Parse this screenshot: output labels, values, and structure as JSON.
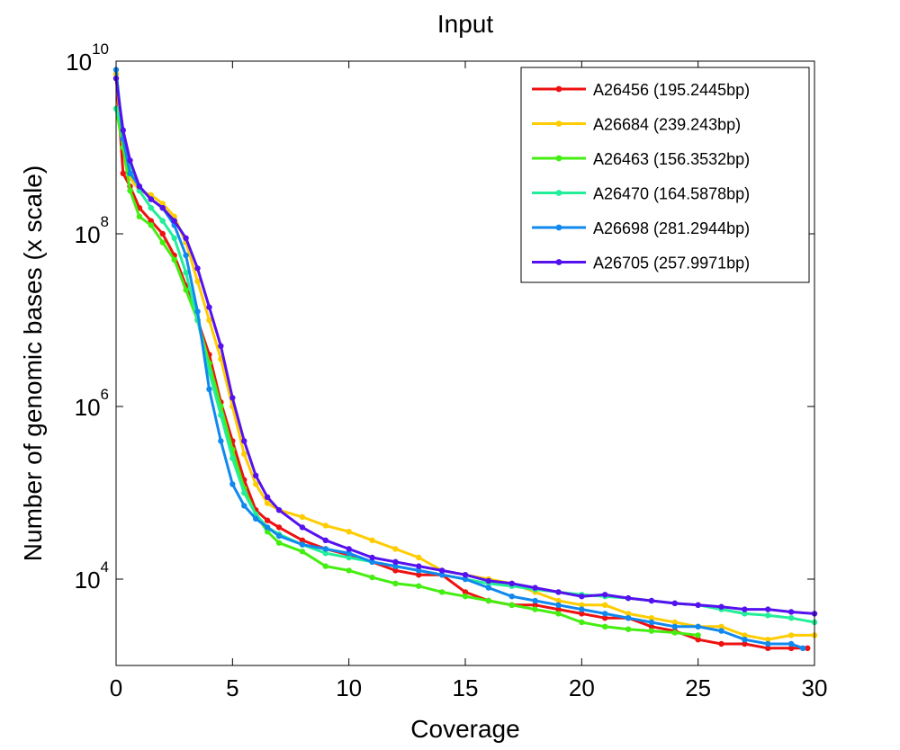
{
  "chart_data": {
    "type": "line",
    "title": "Input",
    "xlabel": "Coverage",
    "ylabel": "Number of genomic bases (x scale)",
    "xlim": [
      0,
      30
    ],
    "ylim_log10": [
      3.0,
      10.0
    ],
    "y_scale": "log",
    "x_ticks": [
      0,
      5,
      10,
      15,
      20,
      25,
      30
    ],
    "y_ticks": [
      {
        "base": "10",
        "exp": "4",
        "value_log10": 4
      },
      {
        "base": "10",
        "exp": "6",
        "value_log10": 6
      },
      {
        "base": "10",
        "exp": "8",
        "value_log10": 8
      },
      {
        "base": "10",
        "exp": "10",
        "value_log10": 10
      }
    ],
    "grid": false,
    "legend_position": "top-right",
    "series": [
      {
        "name": "A26456 (195.2445bp)",
        "color": "#ee1111",
        "x": [
          0,
          0.3,
          0.6,
          1,
          1.5,
          2,
          2.5,
          3,
          3.5,
          4,
          4.5,
          5,
          5.5,
          6,
          6.5,
          7,
          8,
          9,
          10,
          11,
          12,
          13,
          14,
          15,
          16,
          17,
          18,
          19,
          20,
          21,
          22,
          23,
          24,
          25,
          26,
          27,
          28,
          29,
          29.7
        ],
        "log_y": [
          9.85,
          8.7,
          8.55,
          8.3,
          8.15,
          8.0,
          7.75,
          7.4,
          7.0,
          6.6,
          6.05,
          5.6,
          5.15,
          4.8,
          4.68,
          4.6,
          4.45,
          4.35,
          4.28,
          4.2,
          4.1,
          4.05,
          4.05,
          3.85,
          3.75,
          3.7,
          3.7,
          3.65,
          3.6,
          3.55,
          3.55,
          3.45,
          3.4,
          3.3,
          3.25,
          3.25,
          3.2,
          3.2,
          3.2
        ]
      },
      {
        "name": "A26684 (239.243bp)",
        "color": "#ffcc00",
        "x": [
          0,
          0.3,
          0.6,
          1,
          1.5,
          2,
          2.5,
          3,
          3.5,
          4,
          4.5,
          5,
          5.5,
          6,
          6.5,
          7,
          8,
          9,
          10,
          11,
          12,
          13,
          14,
          15,
          16,
          17,
          18,
          19,
          20,
          21,
          22,
          23,
          24,
          25,
          26,
          27,
          28,
          29,
          30
        ],
        "log_y": [
          9.85,
          9.0,
          8.65,
          8.5,
          8.45,
          8.35,
          8.2,
          7.9,
          7.45,
          7.0,
          6.55,
          6.0,
          5.45,
          5.1,
          4.88,
          4.8,
          4.72,
          4.62,
          4.55,
          4.45,
          4.35,
          4.25,
          4.1,
          4.05,
          4.0,
          3.95,
          3.85,
          3.75,
          3.7,
          3.7,
          3.6,
          3.55,
          3.5,
          3.45,
          3.45,
          3.35,
          3.3,
          3.35,
          3.35
        ]
      },
      {
        "name": "A26463 (156.3532bp)",
        "color": "#44ee11",
        "x": [
          0,
          0.3,
          0.6,
          1,
          1.5,
          2,
          2.5,
          3,
          3.5,
          4,
          4.5,
          5,
          5.5,
          6,
          6.5,
          7,
          8,
          9,
          10,
          11,
          12,
          13,
          14,
          15,
          16,
          17,
          18,
          19,
          20,
          21,
          22,
          23,
          24,
          25
        ],
        "log_y": [
          9.45,
          9.0,
          8.5,
          8.2,
          8.1,
          7.9,
          7.7,
          7.35,
          7.0,
          6.5,
          6.0,
          5.5,
          5.05,
          4.75,
          4.55,
          4.42,
          4.32,
          4.15,
          4.1,
          4.02,
          3.95,
          3.92,
          3.85,
          3.8,
          3.75,
          3.7,
          3.65,
          3.6,
          3.5,
          3.45,
          3.42,
          3.4,
          3.38,
          3.35
        ]
      },
      {
        "name": "A26470 (164.5878bp)",
        "color": "#22ee99",
        "x": [
          0,
          0.3,
          0.6,
          1,
          1.5,
          2,
          2.5,
          3,
          3.5,
          4,
          4.5,
          5,
          5.5,
          6,
          6.5,
          7,
          8,
          9,
          10,
          11,
          12,
          13,
          14,
          15,
          16,
          17,
          18,
          19,
          20,
          21,
          22,
          23,
          24,
          25,
          26,
          27,
          28,
          29,
          30
        ],
        "log_y": [
          9.45,
          9.2,
          8.8,
          8.5,
          8.3,
          8.15,
          7.95,
          7.55,
          7.0,
          6.4,
          5.9,
          5.4,
          5.0,
          4.75,
          4.6,
          4.52,
          4.4,
          4.3,
          4.25,
          4.2,
          4.15,
          4.1,
          4.05,
          4.0,
          3.95,
          3.92,
          3.88,
          3.85,
          3.82,
          3.8,
          3.78,
          3.75,
          3.72,
          3.7,
          3.65,
          3.6,
          3.58,
          3.55,
          3.5
        ]
      },
      {
        "name": "A26698 (281.2944bp)",
        "color": "#1188ee",
        "x": [
          0,
          0.3,
          0.6,
          1,
          1.5,
          2,
          2.5,
          3,
          3.5,
          4,
          4.5,
          5,
          5.5,
          6,
          6.5,
          7,
          8,
          9,
          10,
          11,
          12,
          13,
          14,
          15,
          16,
          17,
          18,
          19,
          20,
          21,
          22,
          23,
          24,
          25,
          26,
          27,
          28,
          29,
          29.5
        ],
        "log_y": [
          9.9,
          9.1,
          8.7,
          8.55,
          8.4,
          8.3,
          8.1,
          7.75,
          7.1,
          6.2,
          5.6,
          5.1,
          4.85,
          4.7,
          4.6,
          4.5,
          4.4,
          4.35,
          4.3,
          4.2,
          4.15,
          4.1,
          4.05,
          4.0,
          3.9,
          3.8,
          3.75,
          3.7,
          3.65,
          3.6,
          3.55,
          3.5,
          3.45,
          3.45,
          3.4,
          3.3,
          3.25,
          3.25,
          3.2
        ]
      },
      {
        "name": "A26705 (257.9971bp)",
        "color": "#5511ee",
        "x": [
          0,
          0.3,
          0.6,
          1,
          1.5,
          2,
          2.5,
          3,
          3.5,
          4,
          4.5,
          5,
          5.5,
          6,
          6.5,
          7,
          8,
          9,
          10,
          11,
          12,
          13,
          14,
          15,
          16,
          17,
          18,
          19,
          20,
          21,
          22,
          23,
          24,
          25,
          26,
          27,
          28,
          29,
          30
        ],
        "log_y": [
          9.8,
          9.2,
          8.85,
          8.55,
          8.4,
          8.3,
          8.15,
          7.95,
          7.6,
          7.15,
          6.7,
          6.1,
          5.6,
          5.2,
          4.95,
          4.8,
          4.6,
          4.45,
          4.35,
          4.25,
          4.2,
          4.15,
          4.1,
          4.05,
          3.98,
          3.95,
          3.9,
          3.85,
          3.8,
          3.82,
          3.78,
          3.75,
          3.72,
          3.7,
          3.68,
          3.65,
          3.65,
          3.62,
          3.6
        ]
      }
    ]
  }
}
